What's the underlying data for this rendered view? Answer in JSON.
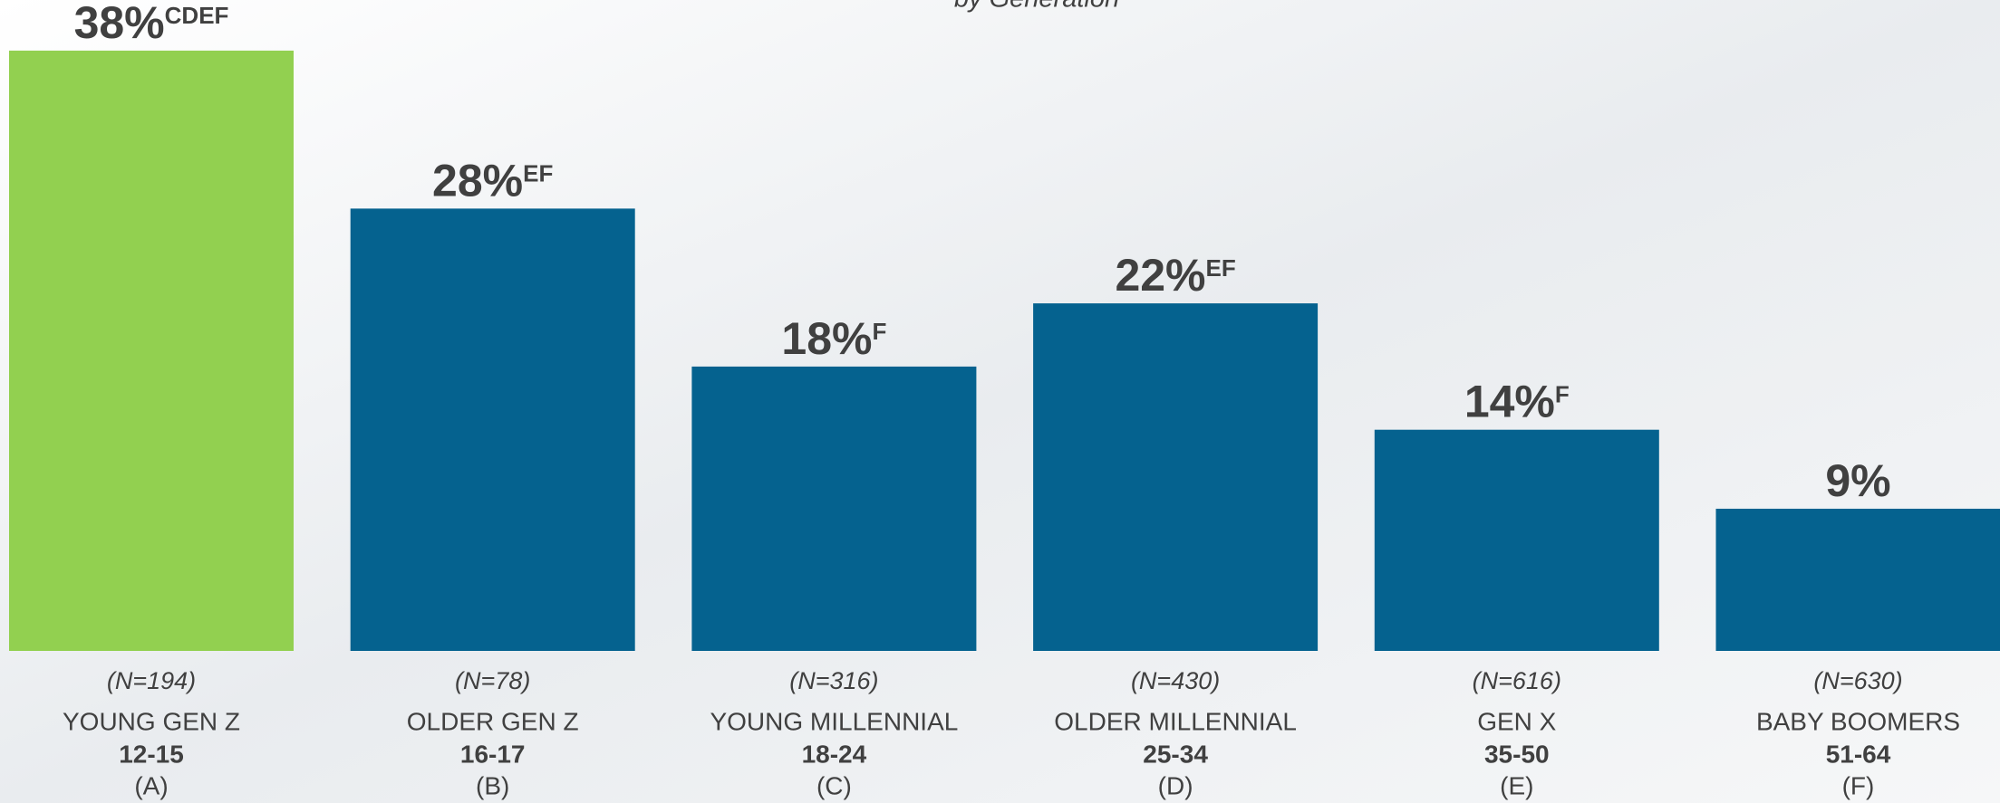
{
  "chart_data": {
    "type": "bar",
    "subtitle": "by Generation",
    "categories": [
      "YOUNG GEN Z",
      "OLDER GEN Z",
      "YOUNG MILLENNIAL",
      "OLDER MILLENNIAL",
      "GEN X",
      "BABY BOOMERS"
    ],
    "sample_sizes": [
      "(N=194)",
      "(N=78)",
      "(N=316)",
      "(N=430)",
      "(N=616)",
      "(N=630)"
    ],
    "age_ranges": [
      "12-15",
      "16-17",
      "18-24",
      "25-34",
      "35-50",
      "51-64"
    ],
    "group_letters": [
      "(A)",
      "(B)",
      "(C)",
      "(D)",
      "(E)",
      "(F)"
    ],
    "values": [
      38,
      28,
      18,
      22,
      14,
      9
    ],
    "value_labels": [
      "38%",
      "28%",
      "18%",
      "22%",
      "14%",
      "9%"
    ],
    "significance": [
      "CDEF",
      "EF",
      "F",
      "EF",
      "F",
      null
    ],
    "colors": [
      "#92d050",
      "#05628f",
      "#05628f",
      "#05628f",
      "#05628f",
      "#05628f"
    ],
    "ylim": [
      0,
      40
    ]
  }
}
